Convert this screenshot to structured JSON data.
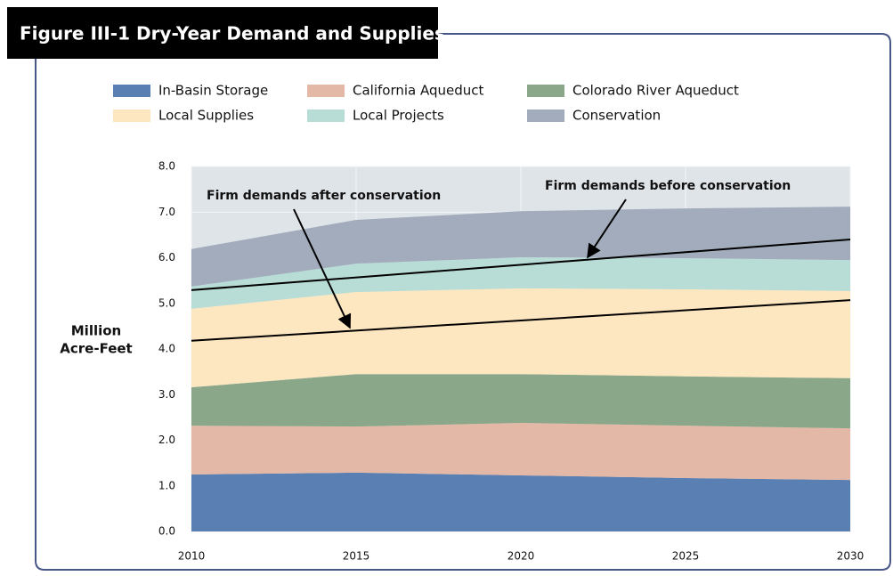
{
  "chart_data": {
    "type": "stacked_area",
    "title": "Figure III-1  Dry-Year Demand and Supplies",
    "y_label": [
      "Million",
      "Acre-Feet"
    ],
    "x": [
      2010,
      2015,
      2020,
      2025,
      2030
    ],
    "xlim": [
      2010,
      2030
    ],
    "xticks": [
      2010,
      2015,
      2020,
      2025,
      2030
    ],
    "ylim": [
      0,
      8
    ],
    "yticks": [
      {
        "value": 0,
        "label": "0.0"
      },
      {
        "value": 1,
        "label": "1.0"
      },
      {
        "value": 2,
        "label": "2.0"
      },
      {
        "value": 3,
        "label": "3.0"
      },
      {
        "value": 4,
        "label": "4.0"
      },
      {
        "value": 5,
        "label": "5.0"
      },
      {
        "value": 6,
        "label": "6.0"
      },
      {
        "value": 7,
        "label": "7.0"
      },
      {
        "value": 8,
        "label": "8.0"
      }
    ],
    "grid": true,
    "series": [
      {
        "name": "In-Basin Storage",
        "color": "#5a7fb3",
        "values": [
          1.25,
          1.29,
          1.23,
          1.17,
          1.13
        ]
      },
      {
        "name": "California Aqueduct",
        "color": "#e4b8a6",
        "values": [
          1.07,
          1.01,
          1.15,
          1.15,
          1.13
        ]
      },
      {
        "name": "Colorado River Aqueduct",
        "color": "#8ba789",
        "values": [
          0.84,
          1.15,
          1.07,
          1.08,
          1.1
        ]
      },
      {
        "name": "Local Supplies",
        "color": "#fde7c0",
        "values": [
          1.72,
          1.8,
          1.88,
          1.91,
          1.91
        ]
      },
      {
        "name": "Local Projects",
        "color": "#b8dcd6",
        "values": [
          0.49,
          0.62,
          0.68,
          0.68,
          0.68
        ]
      },
      {
        "name": "Conservation",
        "color": "#a2acbc",
        "values": [
          0.82,
          0.96,
          1.01,
          1.09,
          1.17
        ]
      }
    ],
    "lines": [
      {
        "name": "Firm demands after conservation",
        "color": "#000000",
        "x": [
          2010,
          2030
        ],
        "values": [
          4.18,
          5.07
        ]
      },
      {
        "name": "Firm demands before conservation",
        "color": "#000000",
        "x": [
          2010,
          2030
        ],
        "values": [
          5.29,
          6.4
        ]
      }
    ]
  }
}
